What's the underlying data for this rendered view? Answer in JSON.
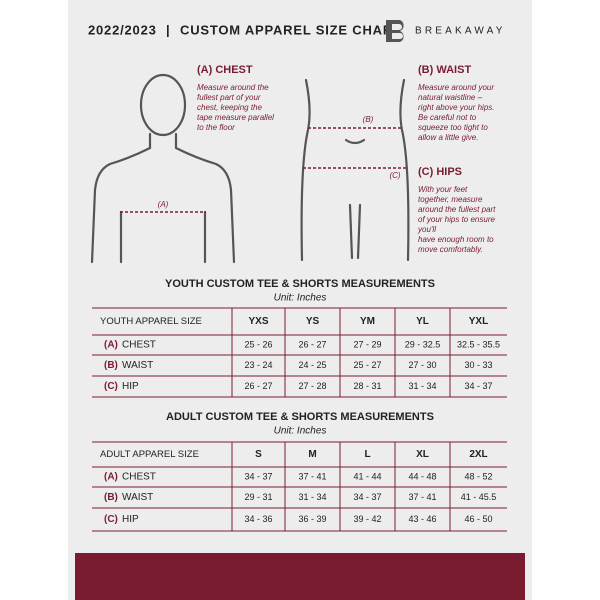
{
  "header": {
    "season": "2022/2023",
    "separator": "|",
    "title": "CUSTOM APPAREL SIZE CHART",
    "brand": "BREAKAWAY"
  },
  "measurements": {
    "chest": {
      "label": "(A) CHEST",
      "marker": "(A)",
      "lines": [
        "Measure around the",
        "fullest part of your",
        "chest, keeping the",
        "tape measure parallel",
        "to the floor"
      ]
    },
    "waist": {
      "label": "(B) WAIST",
      "marker": "(B)",
      "lines": [
        "Measure around your",
        "natural waistline –",
        "right above your hips.",
        "Be careful not to",
        "squeeze too tight to",
        "allow a little give."
      ]
    },
    "hips": {
      "label": "(C) HIPS",
      "marker": "(C)",
      "lines": [
        "With your feet",
        "together, measure",
        "around the fullest part",
        "of your hips to ensure",
        "you'll",
        "have enough room to",
        "move comfortably."
      ]
    }
  },
  "tables": [
    {
      "title": "YOUTH CUSTOM TEE & SHORTS MEASUREMENTS",
      "unit": "Unit: Inches",
      "header": [
        "YOUTH APPAREL SIZE",
        "YXS",
        "YS",
        "YM",
        "YL",
        "YXL"
      ],
      "rows": [
        {
          "marker": "(A)",
          "label": "CHEST",
          "values": [
            "25 - 26",
            "26 - 27",
            "27 - 29",
            "29 - 32.5",
            "32.5 - 35.5"
          ]
        },
        {
          "marker": "(B)",
          "label": "WAIST",
          "values": [
            "23 - 24",
            "24 - 25",
            "25 - 27",
            "27 - 30",
            "30 - 33"
          ]
        },
        {
          "marker": "(C)",
          "label": "HIP",
          "values": [
            "26 - 27",
            "27 - 28",
            "28 - 31",
            "31 - 34",
            "34 - 37"
          ]
        }
      ]
    },
    {
      "title": "ADULT CUSTOM TEE & SHORTS MEASUREMENTS",
      "unit": "Unit: Inches",
      "header": [
        "ADULT APPAREL SIZE",
        "S",
        "M",
        "L",
        "XL",
        "2XL"
      ],
      "rows": [
        {
          "marker": "(A)",
          "label": "CHEST",
          "values": [
            "34 - 37",
            "37 - 41",
            "41 - 44",
            "44 - 48",
            "48 - 52"
          ]
        },
        {
          "marker": "(B)",
          "label": "WAIST",
          "values": [
            "29 - 31",
            "31 - 34",
            "34 - 37",
            "37 - 41",
            "41 - 45.5"
          ]
        },
        {
          "marker": "(C)",
          "label": "HIP",
          "values": [
            "34 - 36",
            "36 - 39",
            "39 - 42",
            "43 - 46",
            "46 - 50"
          ]
        }
      ]
    }
  ]
}
